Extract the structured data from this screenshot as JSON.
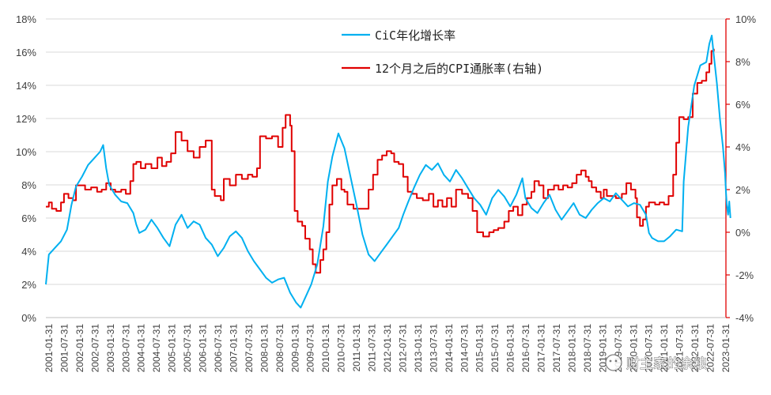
{
  "chart_data": {
    "type": "line",
    "title": "",
    "left_axis": {
      "ticks": [
        0,
        2,
        4,
        6,
        8,
        10,
        12,
        14,
        16,
        18
      ],
      "suffix": "%",
      "ylim": [
        0,
        18
      ]
    },
    "right_axis": {
      "ticks": [
        -4,
        -2,
        0,
        2,
        4,
        6,
        8,
        10
      ],
      "suffix": "%",
      "ylim": [
        -4,
        10
      ]
    },
    "x_labels": [
      "2001-01-31",
      "2001-07-31",
      "2002-01-31",
      "2002-07-31",
      "2003-01-31",
      "2003-07-31",
      "2004-01-31",
      "2004-07-31",
      "2005-01-31",
      "2005-07-31",
      "2006-01-31",
      "2006-07-31",
      "2007-01-31",
      "2007-07-31",
      "2008-01-31",
      "2008-07-31",
      "2009-01-31",
      "2009-07-31",
      "2010-01-31",
      "2010-07-31",
      "2011-01-31",
      "2011-07-31",
      "2012-01-31",
      "2012-07-31",
      "2013-01-31",
      "2013-07-31",
      "2014-01-31",
      "2014-07-31",
      "2015-01-31",
      "2015-07-31",
      "2016-01-31",
      "2016-07-31",
      "2017-01-31",
      "2017-07-31",
      "2018-01-31",
      "2018-07-31",
      "2019-01-31",
      "2019-07-31",
      "2020-01-31",
      "2020-07-31",
      "2021-01-31",
      "2021-07-31",
      "2022-01-31",
      "2022-07-31",
      "2023-01-31"
    ],
    "x_range": [
      2001.0,
      2023.55
    ],
    "grid": true,
    "legend_position": "top-center",
    "series": [
      {
        "name": "CiC年化增长率",
        "axis": "left",
        "color": "#00B0F0",
        "points": [
          [
            2001.0,
            2.0
          ],
          [
            2001.1,
            3.8
          ],
          [
            2001.3,
            4.2
          ],
          [
            2001.5,
            4.6
          ],
          [
            2001.7,
            5.3
          ],
          [
            2001.85,
            6.8
          ],
          [
            2002.0,
            7.9
          ],
          [
            2002.2,
            8.5
          ],
          [
            2002.4,
            9.2
          ],
          [
            2002.6,
            9.6
          ],
          [
            2002.8,
            10.0
          ],
          [
            2002.9,
            10.4
          ],
          [
            2003.0,
            9.0
          ],
          [
            2003.1,
            8.0
          ],
          [
            2003.3,
            7.4
          ],
          [
            2003.5,
            7.0
          ],
          [
            2003.7,
            6.9
          ],
          [
            2003.9,
            6.3
          ],
          [
            2004.0,
            5.6
          ],
          [
            2004.1,
            5.1
          ],
          [
            2004.3,
            5.3
          ],
          [
            2004.5,
            5.9
          ],
          [
            2004.7,
            5.4
          ],
          [
            2004.9,
            4.8
          ],
          [
            2005.1,
            4.3
          ],
          [
            2005.3,
            5.6
          ],
          [
            2005.5,
            6.2
          ],
          [
            2005.7,
            5.4
          ],
          [
            2005.9,
            5.8
          ],
          [
            2006.1,
            5.6
          ],
          [
            2006.3,
            4.8
          ],
          [
            2006.5,
            4.4
          ],
          [
            2006.7,
            3.7
          ],
          [
            2006.9,
            4.2
          ],
          [
            2007.1,
            4.9
          ],
          [
            2007.3,
            5.2
          ],
          [
            2007.5,
            4.8
          ],
          [
            2007.7,
            4.0
          ],
          [
            2007.9,
            3.4
          ],
          [
            2008.1,
            2.9
          ],
          [
            2008.3,
            2.4
          ],
          [
            2008.5,
            2.1
          ],
          [
            2008.7,
            2.3
          ],
          [
            2008.9,
            2.4
          ],
          [
            2009.1,
            1.5
          ],
          [
            2009.3,
            0.9
          ],
          [
            2009.45,
            0.6
          ],
          [
            2009.6,
            1.2
          ],
          [
            2009.8,
            2.0
          ],
          [
            2010.0,
            3.2
          ],
          [
            2010.2,
            5.5
          ],
          [
            2010.35,
            8.2
          ],
          [
            2010.5,
            9.7
          ],
          [
            2010.7,
            11.1
          ],
          [
            2010.9,
            10.2
          ],
          [
            2011.1,
            8.5
          ],
          [
            2011.3,
            6.8
          ],
          [
            2011.5,
            5.0
          ],
          [
            2011.7,
            3.8
          ],
          [
            2011.9,
            3.4
          ],
          [
            2012.1,
            3.9
          ],
          [
            2012.3,
            4.4
          ],
          [
            2012.5,
            4.9
          ],
          [
            2012.7,
            5.4
          ],
          [
            2012.85,
            6.2
          ],
          [
            2013.0,
            6.9
          ],
          [
            2013.2,
            7.8
          ],
          [
            2013.4,
            8.6
          ],
          [
            2013.6,
            9.2
          ],
          [
            2013.8,
            8.9
          ],
          [
            2014.0,
            9.3
          ],
          [
            2014.2,
            8.6
          ],
          [
            2014.4,
            8.2
          ],
          [
            2014.6,
            8.9
          ],
          [
            2014.8,
            8.4
          ],
          [
            2015.0,
            7.8
          ],
          [
            2015.2,
            7.2
          ],
          [
            2015.4,
            6.8
          ],
          [
            2015.6,
            6.2
          ],
          [
            2015.8,
            7.2
          ],
          [
            2016.0,
            7.7
          ],
          [
            2016.2,
            7.3
          ],
          [
            2016.4,
            6.7
          ],
          [
            2016.6,
            7.4
          ],
          [
            2016.8,
            8.4
          ],
          [
            2016.9,
            7.2
          ],
          [
            2017.1,
            6.6
          ],
          [
            2017.3,
            6.3
          ],
          [
            2017.5,
            6.9
          ],
          [
            2017.7,
            7.4
          ],
          [
            2017.9,
            6.5
          ],
          [
            2018.1,
            5.9
          ],
          [
            2018.3,
            6.4
          ],
          [
            2018.5,
            6.9
          ],
          [
            2018.7,
            6.2
          ],
          [
            2018.9,
            6.0
          ],
          [
            2019.1,
            6.5
          ],
          [
            2019.3,
            6.9
          ],
          [
            2019.5,
            7.2
          ],
          [
            2019.7,
            7.0
          ],
          [
            2019.9,
            7.5
          ],
          [
            2020.1,
            7.1
          ],
          [
            2020.3,
            6.7
          ],
          [
            2020.5,
            6.9
          ],
          [
            2020.7,
            6.8
          ],
          [
            2020.9,
            6.2
          ],
          [
            2021.0,
            5.1
          ],
          [
            2021.1,
            4.8
          ],
          [
            2021.3,
            4.6
          ],
          [
            2021.5,
            4.6
          ],
          [
            2021.7,
            4.9
          ],
          [
            2021.9,
            5.3
          ],
          [
            2022.1,
            5.2
          ],
          [
            2022.15,
            8.2
          ],
          [
            2022.3,
            11.5
          ],
          [
            2022.5,
            14.0
          ],
          [
            2022.7,
            15.2
          ],
          [
            2022.9,
            15.4
          ],
          [
            2023.0,
            16.5
          ],
          [
            2023.08,
            17.0
          ],
          [
            2023.15,
            15.8
          ],
          [
            2023.25,
            14.1
          ],
          [
            2023.35,
            12.0
          ],
          [
            2023.45,
            10.3
          ],
          [
            2023.52,
            8.7
          ],
          [
            2023.55,
            7.6
          ],
          [
            2023.58,
            6.8
          ],
          [
            2023.62,
            6.2
          ],
          [
            2023.66,
            7.0
          ],
          [
            2023.7,
            6.0
          ]
        ]
      },
      {
        "name": "12个月之后的CPI通胀率(右轴)",
        "axis": "right",
        "color": "#E00000",
        "points": [
          [
            2001.0,
            1.2
          ],
          [
            2001.1,
            1.4
          ],
          [
            2001.2,
            1.1
          ],
          [
            2001.35,
            1.0
          ],
          [
            2001.5,
            1.4
          ],
          [
            2001.6,
            1.8
          ],
          [
            2001.75,
            1.6
          ],
          [
            2001.9,
            1.5
          ],
          [
            2002.0,
            2.2
          ],
          [
            2002.15,
            2.2
          ],
          [
            2002.3,
            2.0
          ],
          [
            2002.5,
            2.1
          ],
          [
            2002.7,
            1.9
          ],
          [
            2002.85,
            2.0
          ],
          [
            2003.0,
            2.3
          ],
          [
            2003.15,
            2.0
          ],
          [
            2003.3,
            1.9
          ],
          [
            2003.5,
            2.0
          ],
          [
            2003.65,
            1.8
          ],
          [
            2003.8,
            2.4
          ],
          [
            2003.9,
            3.2
          ],
          [
            2004.0,
            3.3
          ],
          [
            2004.15,
            3.0
          ],
          [
            2004.3,
            3.2
          ],
          [
            2004.5,
            3.0
          ],
          [
            2004.7,
            3.5
          ],
          [
            2004.85,
            3.1
          ],
          [
            2005.0,
            3.3
          ],
          [
            2005.15,
            3.7
          ],
          [
            2005.3,
            4.7
          ],
          [
            2005.5,
            4.3
          ],
          [
            2005.7,
            3.8
          ],
          [
            2005.9,
            3.5
          ],
          [
            2006.1,
            4.0
          ],
          [
            2006.3,
            4.3
          ],
          [
            2006.5,
            2.0
          ],
          [
            2006.6,
            1.7
          ],
          [
            2006.8,
            1.5
          ],
          [
            2006.9,
            2.5
          ],
          [
            2007.1,
            2.2
          ],
          [
            2007.3,
            2.7
          ],
          [
            2007.5,
            2.5
          ],
          [
            2007.7,
            2.7
          ],
          [
            2007.85,
            2.6
          ],
          [
            2008.0,
            3.0
          ],
          [
            2008.1,
            4.5
          ],
          [
            2008.3,
            4.4
          ],
          [
            2008.5,
            4.5
          ],
          [
            2008.7,
            4.0
          ],
          [
            2008.85,
            4.9
          ],
          [
            2008.95,
            5.5
          ],
          [
            2009.1,
            5.0
          ],
          [
            2009.15,
            3.8
          ],
          [
            2009.25,
            1.0
          ],
          [
            2009.35,
            0.5
          ],
          [
            2009.5,
            0.3
          ],
          [
            2009.6,
            -0.3
          ],
          [
            2009.75,
            -0.8
          ],
          [
            2009.85,
            -1.5
          ],
          [
            2009.95,
            -1.9
          ],
          [
            2010.1,
            -1.3
          ],
          [
            2010.2,
            -0.8
          ],
          [
            2010.3,
            0.0
          ],
          [
            2010.4,
            1.3
          ],
          [
            2010.5,
            2.2
          ],
          [
            2010.65,
            2.5
          ],
          [
            2010.8,
            2.0
          ],
          [
            2010.9,
            1.9
          ],
          [
            2011.0,
            1.3
          ],
          [
            2011.2,
            1.1
          ],
          [
            2011.4,
            1.1
          ],
          [
            2011.6,
            1.1
          ],
          [
            2011.7,
            2.0
          ],
          [
            2011.85,
            2.7
          ],
          [
            2012.0,
            3.4
          ],
          [
            2012.15,
            3.6
          ],
          [
            2012.3,
            3.8
          ],
          [
            2012.45,
            3.7
          ],
          [
            2012.55,
            3.3
          ],
          [
            2012.7,
            3.2
          ],
          [
            2012.85,
            2.6
          ],
          [
            2013.0,
            1.9
          ],
          [
            2013.15,
            1.8
          ],
          [
            2013.3,
            1.6
          ],
          [
            2013.5,
            1.5
          ],
          [
            2013.7,
            1.8
          ],
          [
            2013.85,
            1.2
          ],
          [
            2014.0,
            1.5
          ],
          [
            2014.15,
            1.2
          ],
          [
            2014.3,
            1.6
          ],
          [
            2014.45,
            1.2
          ],
          [
            2014.6,
            2.0
          ],
          [
            2014.8,
            1.8
          ],
          [
            2015.0,
            1.6
          ],
          [
            2015.15,
            1.0
          ],
          [
            2015.3,
            0.0
          ],
          [
            2015.5,
            -0.2
          ],
          [
            2015.7,
            0.0
          ],
          [
            2015.85,
            0.1
          ],
          [
            2016.0,
            0.2
          ],
          [
            2016.2,
            0.5
          ],
          [
            2016.35,
            1.0
          ],
          [
            2016.5,
            1.2
          ],
          [
            2016.65,
            0.8
          ],
          [
            2016.8,
            1.3
          ],
          [
            2016.95,
            1.6
          ],
          [
            2017.1,
            1.9
          ],
          [
            2017.2,
            2.4
          ],
          [
            2017.35,
            2.2
          ],
          [
            2017.5,
            1.6
          ],
          [
            2017.65,
            2.0
          ],
          [
            2017.85,
            2.2
          ],
          [
            2018.0,
            2.0
          ],
          [
            2018.15,
            2.2
          ],
          [
            2018.3,
            2.1
          ],
          [
            2018.45,
            2.3
          ],
          [
            2018.6,
            2.7
          ],
          [
            2018.75,
            2.9
          ],
          [
            2018.9,
            2.6
          ],
          [
            2019.0,
            2.4
          ],
          [
            2019.1,
            2.1
          ],
          [
            2019.25,
            1.9
          ],
          [
            2019.4,
            1.6
          ],
          [
            2019.5,
            2.0
          ],
          [
            2019.6,
            1.7
          ],
          [
            2019.75,
            1.7
          ],
          [
            2019.9,
            1.6
          ],
          [
            2020.1,
            1.8
          ],
          [
            2020.25,
            2.3
          ],
          [
            2020.4,
            2.0
          ],
          [
            2020.55,
            1.6
          ],
          [
            2020.6,
            0.7
          ],
          [
            2020.7,
            0.3
          ],
          [
            2020.8,
            0.6
          ],
          [
            2020.9,
            1.2
          ],
          [
            2021.0,
            1.4
          ],
          [
            2021.2,
            1.3
          ],
          [
            2021.35,
            1.4
          ],
          [
            2021.5,
            1.3
          ],
          [
            2021.65,
            1.7
          ],
          [
            2021.8,
            2.7
          ],
          [
            2021.9,
            4.2
          ],
          [
            2022.0,
            5.4
          ],
          [
            2022.15,
            5.3
          ],
          [
            2022.3,
            5.4
          ],
          [
            2022.45,
            6.5
          ],
          [
            2022.6,
            7.0
          ],
          [
            2022.75,
            7.1
          ],
          [
            2022.9,
            7.5
          ],
          [
            2023.0,
            7.9
          ],
          [
            2023.07,
            8.5
          ],
          [
            2023.15,
            8.6
          ]
        ]
      }
    ]
  },
  "watermark": {
    "text": "财主家的余粮"
  }
}
